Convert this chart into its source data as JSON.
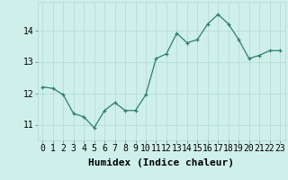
{
  "x": [
    0,
    1,
    2,
    3,
    4,
    5,
    6,
    7,
    8,
    9,
    10,
    11,
    12,
    13,
    14,
    15,
    16,
    17,
    18,
    19,
    20,
    21,
    22,
    23
  ],
  "y": [
    12.2,
    12.15,
    11.95,
    11.35,
    11.25,
    10.9,
    11.45,
    11.7,
    11.45,
    11.45,
    11.95,
    13.1,
    13.25,
    13.9,
    13.6,
    13.7,
    14.2,
    14.5,
    14.2,
    13.7,
    13.1,
    13.2,
    13.35,
    13.35
  ],
  "line_color": "#2d7d6f",
  "marker": "+",
  "marker_size": 3,
  "marker_color": "#2d7d6f",
  "bg_color": "#cff0ea",
  "grid_color": "#b0d8d0",
  "xlabel": "Humidex (Indice chaleur)",
  "xlabel_fontsize": 8,
  "tick_fontsize": 7,
  "ylim": [
    10.5,
    14.9
  ],
  "yticks": [
    11,
    12,
    13,
    14
  ],
  "xticks": [
    0,
    1,
    2,
    3,
    4,
    5,
    6,
    7,
    8,
    9,
    10,
    11,
    12,
    13,
    14,
    15,
    16,
    17,
    18,
    19,
    20,
    21,
    22,
    23
  ]
}
